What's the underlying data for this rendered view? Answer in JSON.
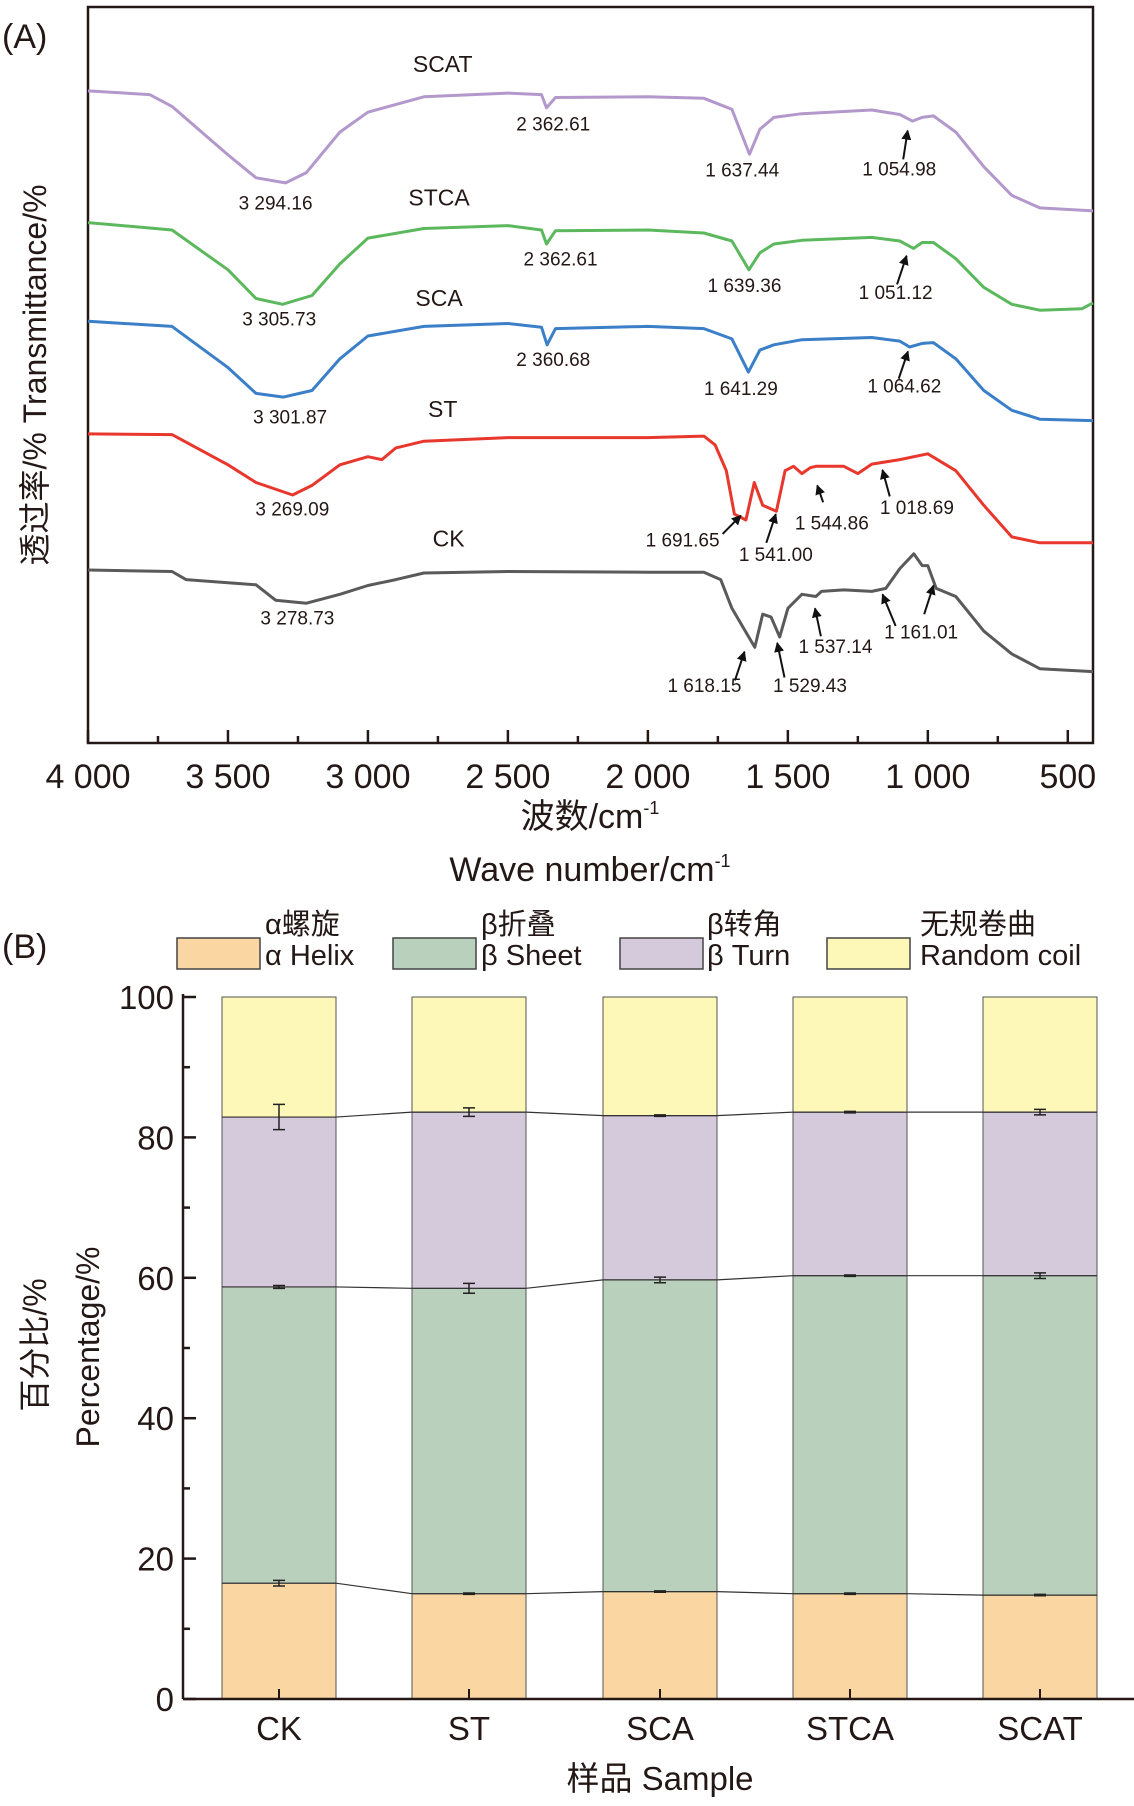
{
  "colors": {
    "SCAT": "#b398cc",
    "STCA": "#5cb85c",
    "SCA": "#3a7fc8",
    "ST": "#e8372c",
    "CK": "#5a5a5a",
    "helix": "#f9d6a2",
    "sheet": "#b9d1bc",
    "turn": "#d5c9dc",
    "coil": "#fdf7b8",
    "axis": "#231815"
  },
  "chart_data": [
    {
      "panel_label": "(A)",
      "type": "line",
      "ylabel": "透过率/% Transmittance/%",
      "xlabel_cn": "波数/cm",
      "xlabel_en": "Wave number/cm",
      "xlabel_sup": "-1",
      "xlim": [
        4000,
        410
      ],
      "ylim": [
        0,
        100
      ],
      "xticks": [
        4000,
        3500,
        3000,
        2500,
        2000,
        1500,
        1000,
        500
      ],
      "xtick_labels": [
        "4 000",
        "3 500",
        "3 000",
        "2 500",
        "2 000",
        "1 500",
        "1 000",
        "500"
      ],
      "series": [
        {
          "name": "SCAT",
          "label_at": [
            2733,
            91.2
          ],
          "x": [
            4000,
            3780,
            3700,
            3500,
            3400,
            3294,
            3220,
            3100,
            3000,
            2800,
            2500,
            2380,
            2362,
            2330,
            2000,
            1800,
            1700,
            1637,
            1600,
            1550,
            1450,
            1200,
            1100,
            1055,
            1020,
            980,
            900,
            800,
            700,
            600,
            410
          ],
          "y": [
            88.6,
            88.1,
            86.5,
            79.9,
            76.8,
            76.1,
            77.5,
            83.0,
            85.7,
            87.8,
            88.3,
            88.1,
            86.3,
            87.7,
            87.8,
            87.6,
            86.1,
            80.0,
            83.4,
            85.0,
            85.5,
            86.0,
            85.4,
            84.5,
            85.0,
            85.2,
            83.0,
            78.3,
            74.4,
            72.7,
            72.3
          ]
        },
        {
          "name": "STCA",
          "label_at": [
            2746,
            73.0
          ],
          "x": [
            4000,
            3700,
            3500,
            3400,
            3305,
            3200,
            3100,
            3000,
            2800,
            2500,
            2380,
            2362,
            2330,
            2000,
            1800,
            1700,
            1639,
            1600,
            1550,
            1450,
            1200,
            1100,
            1051,
            1020,
            980,
            900,
            800,
            700,
            600,
            450,
            410
          ],
          "y": [
            70.7,
            69.7,
            64.3,
            60.4,
            59.6,
            60.8,
            65.1,
            68.6,
            69.9,
            70.3,
            69.7,
            67.8,
            69.6,
            69.7,
            69.3,
            68.2,
            64.3,
            66.6,
            67.8,
            68.3,
            68.7,
            68.2,
            67.2,
            68.0,
            68.0,
            65.8,
            61.9,
            59.6,
            58.8,
            59.0,
            59.8
          ]
        },
        {
          "name": "SCA",
          "label_at": [
            2746,
            59.4
          ],
          "x": [
            4000,
            3700,
            3500,
            3400,
            3302,
            3200,
            3100,
            3000,
            2800,
            2500,
            2380,
            2360,
            2330,
            2000,
            1800,
            1700,
            1641,
            1600,
            1550,
            1450,
            1200,
            1100,
            1065,
            1020,
            980,
            900,
            800,
            700,
            600,
            410
          ],
          "y": [
            57.3,
            56.6,
            51.0,
            47.5,
            47.0,
            47.9,
            52.2,
            55.3,
            56.6,
            57.0,
            56.5,
            54.1,
            56.3,
            56.6,
            56.3,
            54.9,
            50.4,
            53.4,
            54.1,
            54.8,
            55.1,
            54.6,
            53.8,
            54.3,
            54.4,
            52.2,
            47.9,
            45.2,
            44.0,
            43.8
          ]
        },
        {
          "name": "ST",
          "label_at": [
            2733,
            44.3
          ],
          "x": [
            4000,
            3700,
            3500,
            3400,
            3269,
            3200,
            3100,
            3000,
            2950,
            2900,
            2800,
            2500,
            2000,
            1800,
            1760,
            1720,
            1691,
            1650,
            1620,
            1590,
            1541,
            1510,
            1480,
            1450,
            1420,
            1400,
            1300,
            1250,
            1200,
            1100,
            1000,
            900,
            800,
            700,
            600,
            410
          ],
          "y": [
            42.0,
            41.9,
            37.8,
            35.4,
            33.7,
            35.0,
            37.8,
            38.9,
            38.5,
            40.1,
            41.0,
            41.5,
            41.5,
            41.7,
            40.5,
            37.0,
            31.1,
            30.3,
            35.4,
            32.3,
            31.5,
            37.0,
            37.6,
            36.6,
            37.4,
            37.6,
            37.6,
            36.6,
            37.9,
            38.5,
            39.3,
            37.0,
            32.3,
            28.0,
            27.2,
            27.2
          ]
        },
        {
          "name": "CK",
          "label_at": [
            2712,
            26.7
          ],
          "x": [
            4000,
            3700,
            3650,
            3400,
            3330,
            3220,
            3100,
            3000,
            2900,
            2800,
            2500,
            2000,
            1800,
            1740,
            1700,
            1618,
            1590,
            1560,
            1529,
            1500,
            1450,
            1400,
            1380,
            1300,
            1200,
            1150,
            1100,
            1050,
            1020,
            1000,
            970,
            900,
            800,
            700,
            600,
            410
          ],
          "y": [
            23.5,
            23.3,
            22.2,
            21.5,
            19.4,
            19.0,
            20.2,
            21.4,
            22.2,
            23.1,
            23.3,
            23.2,
            23.2,
            22.2,
            18.3,
            13.0,
            17.5,
            17.1,
            14.4,
            18.3,
            20.2,
            19.9,
            20.6,
            20.8,
            20.6,
            21.0,
            23.7,
            25.7,
            24.1,
            24.1,
            21.0,
            19.9,
            15.2,
            12.1,
            10.1,
            9.7
          ]
        }
      ],
      "annotations": [
        {
          "text": "3 294.16",
          "at": [
            3330,
            72.5
          ]
        },
        {
          "text": "2 362.61",
          "at": [
            2338,
            83.2
          ]
        },
        {
          "text": "1 637.44",
          "at": [
            1663,
            77.0
          ]
        },
        {
          "text": "1 054.98",
          "at": [
            1102,
            77.1
          ],
          "arrow": [
            [
              1088,
              79.3
            ],
            [
              1072,
              83.2
            ]
          ]
        },
        {
          "text": "3 305.73",
          "at": [
            3317,
            56.7
          ]
        },
        {
          "text": "2 362.61",
          "at": [
            2312,
            64.9
          ]
        },
        {
          "text": "1 639.36",
          "at": [
            1655,
            61.3
          ]
        },
        {
          "text": "1 051.12",
          "at": [
            1115,
            60.3
          ],
          "arrow": [
            [
              1110,
              62.3
            ],
            [
              1076,
              66.2
            ]
          ]
        },
        {
          "text": "3 301.87",
          "at": [
            3278,
            43.4
          ]
        },
        {
          "text": "2 360.68",
          "at": [
            2338,
            51.2
          ]
        },
        {
          "text": "1 641.29",
          "at": [
            1668,
            47.3
          ]
        },
        {
          "text": "1 064.62",
          "at": [
            1084,
            47.6
          ],
          "arrow": [
            [
              1104,
              49.5
            ],
            [
              1071,
              53.2
            ]
          ]
        },
        {
          "text": "3 269.09",
          "at": [
            3270,
            30.9
          ]
        },
        {
          "text": "1 691.65",
          "at": [
            1876,
            26.7
          ],
          "arrow": [
            [
              1733,
              28.4
            ],
            [
              1668,
              30.9
            ]
          ]
        },
        {
          "text": "1 541.00",
          "at": [
            1543,
            24.7
          ],
          "arrow": [
            [
              1577,
              27.2
            ],
            [
              1543,
              31.1
            ]
          ]
        },
        {
          "text": "1 544.86",
          "at": [
            1343,
            29.0
          ],
          "arrow": [
            [
              1374,
              32.7
            ],
            [
              1395,
              35.0
            ]
          ]
        },
        {
          "text": "1 018.69",
          "at": [
            1039,
            31.1
          ],
          "arrow": [
            [
              1136,
              33.5
            ],
            [
              1162,
              37.1
            ]
          ]
        },
        {
          "text": "3 278.73",
          "at": [
            3252,
            16.1
          ]
        },
        {
          "text": "1 618.15",
          "at": [
            1798,
            6.9
          ],
          "arrow": [
            [
              1689,
              8.5
            ],
            [
              1655,
              12.4
            ]
          ]
        },
        {
          "text": "1 529.43",
          "at": [
            1421,
            6.9
          ],
          "arrow": [
            [
              1512,
              8.9
            ],
            [
              1538,
              13.6
            ]
          ]
        },
        {
          "text": "1 537.14",
          "at": [
            1330,
            12.2
          ],
          "arrow": [
            [
              1382,
              14.5
            ],
            [
              1403,
              18.3
            ]
          ]
        },
        {
          "text": "1 161.01",
          "at": [
            1024,
            14.2
          ],
          "arrow": [
            [
              1115,
              15.9
            ],
            [
              1162,
              20.2
            ]
          ]
        },
        {
          "text": "",
          "at": [
            1013,
            17.5
          ],
          "arrow": [
            [
              1013,
              17.5
            ],
            [
              980,
              21.4
            ]
          ]
        }
      ]
    },
    {
      "panel_label": "(B)",
      "type": "bar",
      "stacked": true,
      "categories": [
        "CK",
        "ST",
        "SCA",
        "STCA",
        "SCAT"
      ],
      "xlabel": "样品 Sample",
      "ylabel_cn": "百分比/%",
      "ylabel_en": "Percentage/%",
      "ylim": [
        0,
        100
      ],
      "yticks": [
        0,
        20,
        40,
        60,
        80,
        100
      ],
      "legend_position": "top",
      "series": [
        {
          "key": "helix",
          "name_cn": "α螺旋",
          "name_en": "α Helix",
          "values": [
            16.5,
            15.0,
            15.3,
            15.0,
            14.8
          ],
          "errors": [
            0.4,
            0.1,
            0.1,
            0.1,
            0.1
          ]
        },
        {
          "key": "sheet",
          "name_cn": "β折叠",
          "name_en": "β Sheet",
          "values": [
            42.2,
            43.5,
            44.4,
            45.3,
            45.5
          ],
          "errors": [
            0.2,
            0.7,
            0.4,
            0.1,
            0.4
          ]
        },
        {
          "key": "turn",
          "name_cn": "β转角",
          "name_en": "β Turn",
          "values": [
            24.2,
            25.1,
            23.4,
            23.3,
            23.3
          ],
          "errors": [
            1.8,
            0.6,
            0.1,
            0.1,
            0.4
          ]
        },
        {
          "key": "coil",
          "name_cn": "无规卷曲",
          "name_en": "Random coil",
          "values": [
            17.1,
            16.4,
            16.9,
            16.4,
            16.4
          ],
          "errors": [
            0,
            0,
            0,
            0,
            0
          ]
        }
      ]
    }
  ]
}
